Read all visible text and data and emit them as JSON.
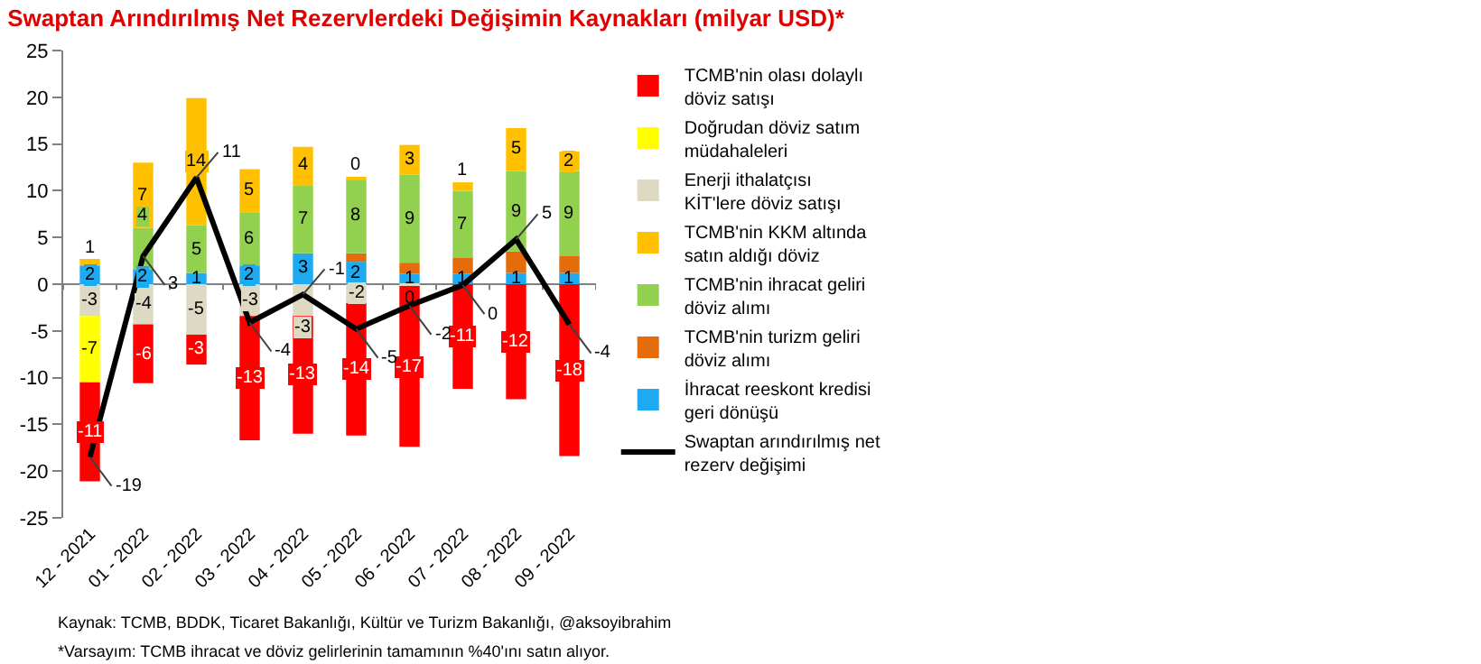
{
  "chart_data": {
    "type": "bar",
    "stacked": true,
    "title": "Swaptan Arındırılmış Net Rezervlerdeki Değişimin Kaynakları (milyar USD)*",
    "categories": [
      "12 - 2021",
      "01 - 2022",
      "02 - 2022",
      "03 - 2022",
      "04 - 2022",
      "05 - 2022",
      "06 - 2022",
      "07 - 2022",
      "08 - 2022",
      "09 - 2022"
    ],
    "series": [
      {
        "name": "İhracat reeskont kredisi geri dönüşü",
        "color": "#1eaaf1",
        "values": [
          2.0,
          1.6,
          1.2,
          2.0,
          3.3,
          2.4,
          1.1,
          1.1,
          1.2,
          1.2
        ],
        "value_labels": [
          "2",
          "2",
          "1",
          "2",
          "3",
          "2",
          "1",
          "1",
          "1",
          "1"
        ]
      },
      {
        "name": "TCMB'nin turizm geliri döviz alımı",
        "color": "#e46c0a",
        "values": [
          null,
          null,
          null,
          null,
          null,
          0.9,
          1.2,
          1.7,
          2.3,
          1.8
        ]
      },
      {
        "name": "TCMB'nin ihracat geliri döviz alımı",
        "color": "#92d050",
        "values": [
          null,
          4.4,
          5.1,
          5.7,
          7.3,
          7.9,
          9.4,
          7.2,
          8.6,
          9.1
        ],
        "value_labels": [
          null,
          "4",
          "5",
          "6",
          "7",
          "8",
          "9",
          "7",
          "9",
          "9"
        ]
      },
      {
        "name": "TCMB'nin KKM altında satın aldığı döviz",
        "color": "#ffc000",
        "values": [
          0.7,
          7.0,
          13.6,
          4.6,
          4.1,
          0.2,
          3.2,
          0.9,
          4.6,
          2.1
        ],
        "value_labels": [
          "1",
          "7",
          "14",
          "5",
          "4",
          "0",
          "3",
          "1",
          "5",
          "2"
        ]
      },
      {
        "name": "Enerji ithalatçısı KİT'lere döviz satışı",
        "color": "#ddd9c3",
        "values": [
          -3.4,
          -4.3,
          -5.4,
          -3.4,
          -3.4,
          -2.0,
          -0.2,
          null,
          null,
          null
        ],
        "value_labels": [
          "-3",
          "-4",
          "-5",
          "-3",
          "-3",
          "-2",
          "0",
          null,
          null,
          null
        ]
      },
      {
        "name": "Doğrudan döviz satım müdahaleleri",
        "color": "#ffff00",
        "values": [
          -7.1,
          null,
          null,
          null,
          null,
          null,
          null,
          null,
          null,
          null
        ],
        "value_labels": [
          "-7",
          null,
          null,
          null,
          null,
          null,
          null,
          null,
          null,
          null
        ]
      },
      {
        "name": "TCMB'nin olası dolaylı döviz satışı",
        "color": "#ff0000",
        "values": [
          -10.6,
          -6.3,
          -3.2,
          -13.3,
          -12.6,
          -14.2,
          -17.2,
          -11.2,
          -12.3,
          -18.4
        ],
        "value_labels": [
          "-11",
          "-6",
          "-3",
          "-13",
          "-13",
          "-14",
          "-17",
          "-11",
          "-12",
          "-18"
        ]
      },
      {
        "name": "Swaptan arındırılmış net rezerv değişimi",
        "type": "line",
        "color": "#000000",
        "values": [
          -18.5,
          3.0,
          11.4,
          -4.1,
          -1.1,
          -4.8,
          -2.3,
          -0.1,
          4.8,
          -4.3
        ],
        "value_labels": [
          "-19",
          "3",
          "11",
          "-4",
          "-1",
          "-5",
          "-2",
          "0",
          "5",
          "-4"
        ]
      }
    ],
    "ylim": [
      -25,
      25
    ],
    "yticks": [
      -25,
      -20,
      -15,
      -10,
      -5,
      0,
      5,
      10,
      15,
      20,
      25
    ],
    "grid": false,
    "legend": "right",
    "ref_lines": [
      {
        "axis": "y",
        "value": 0,
        "color": "#808080"
      }
    ],
    "annotations": [
      "Kaynak: TCMB, BDDK, Ticaret Bakanlığı, Kültür ve Turizm Bakanlığı, @aksoyibrahim",
      "*Varsayım: TCMB ihracat ve döviz gelirlerinin tamamının %40'ını satın alıyor."
    ]
  }
}
